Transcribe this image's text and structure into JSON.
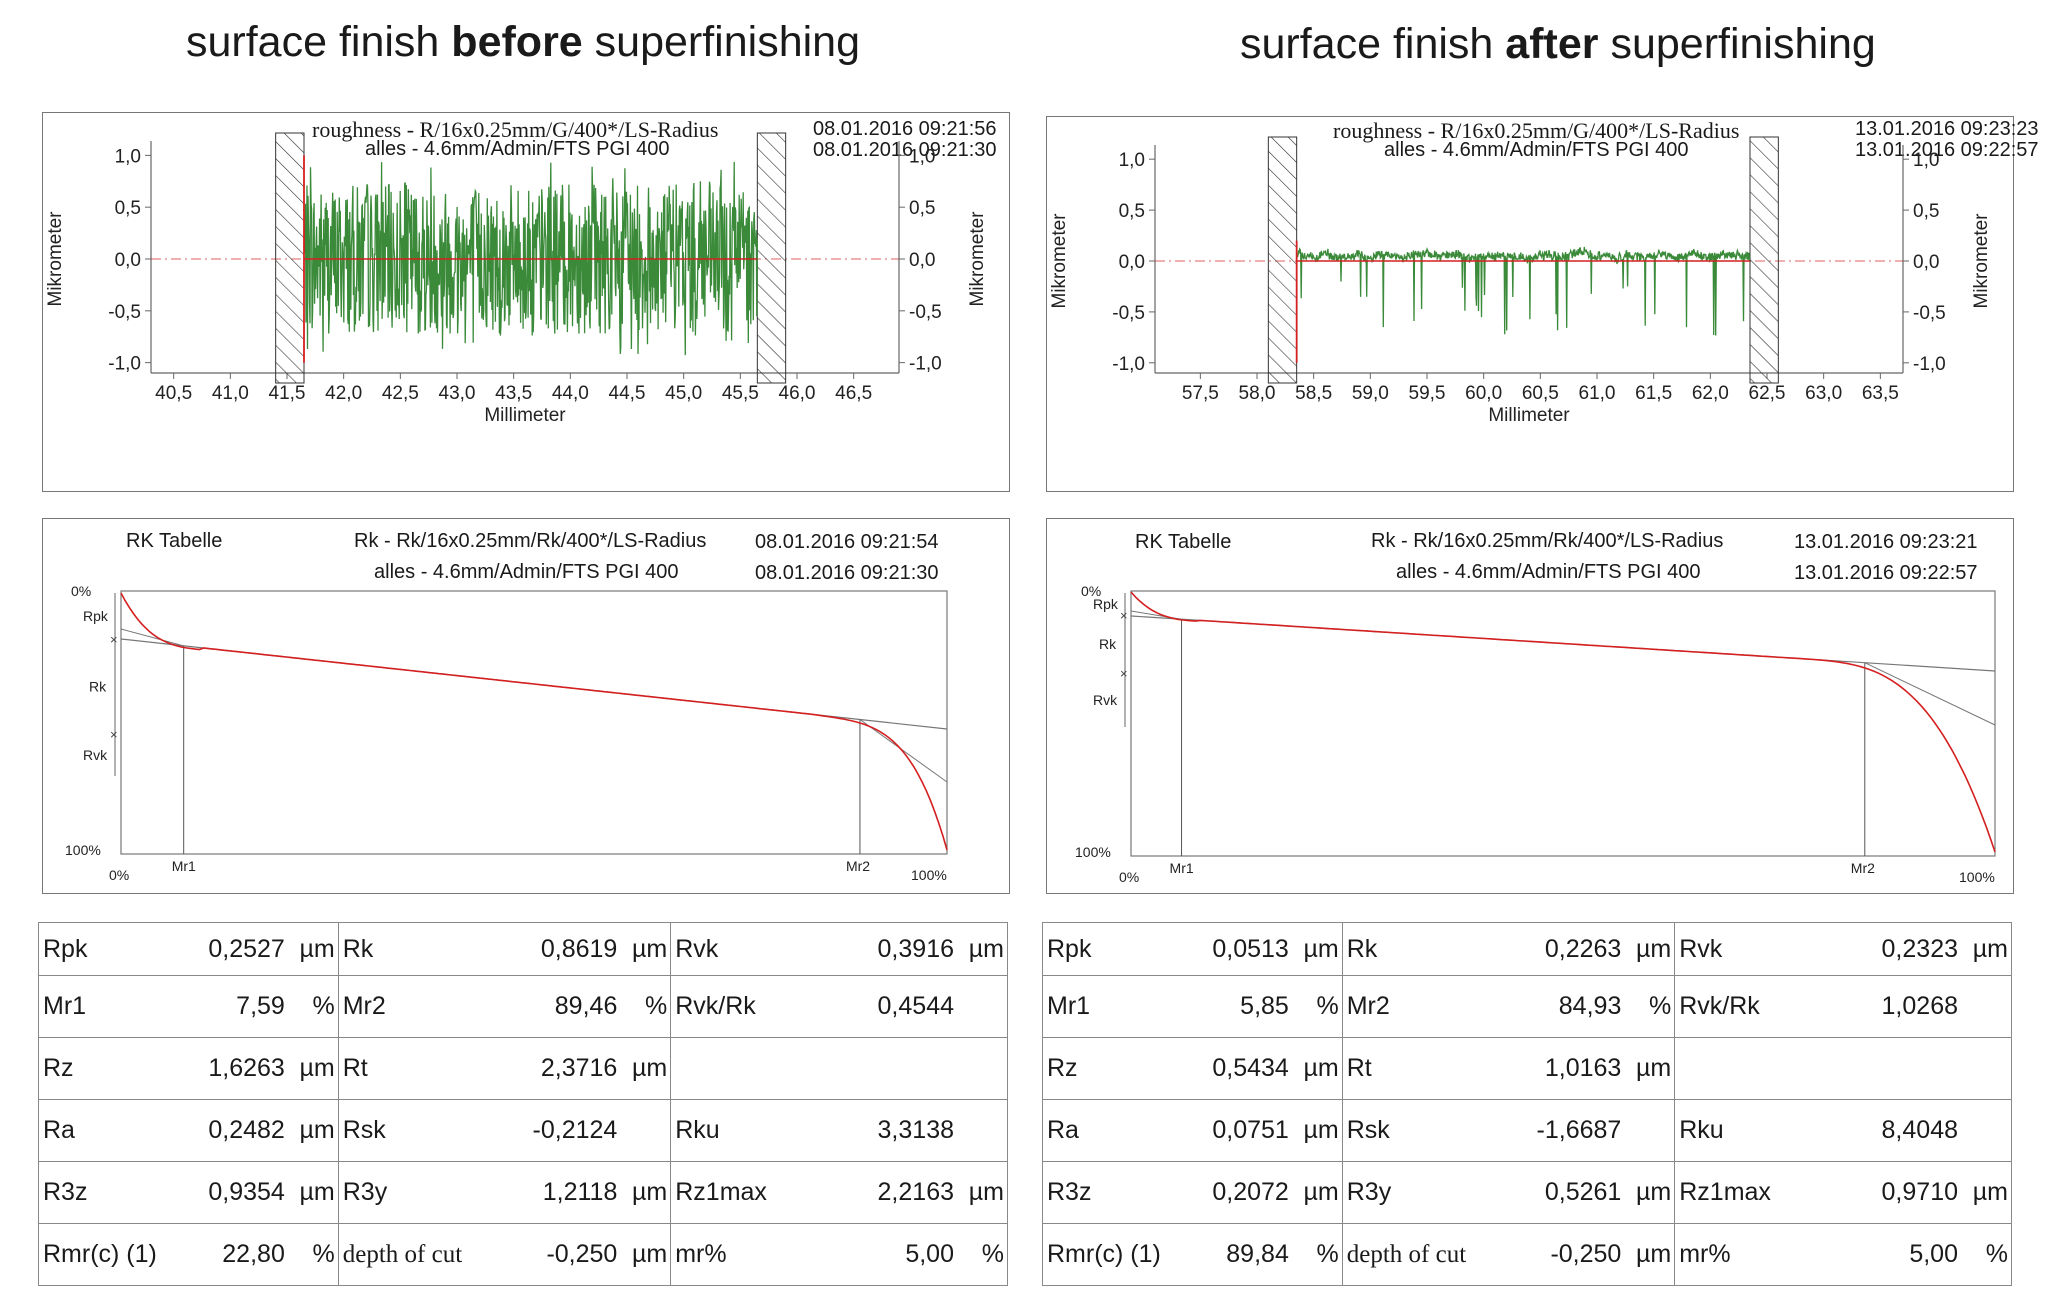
{
  "panels": [
    {
      "id": "before",
      "title_pre": "surface finish ",
      "title_bold": "before",
      "title_post": " superfinishing",
      "roughness": {
        "header_line1": "roughness - R/16x0.25mm/G/400*/LS-Radius",
        "header_line2": "alles - 4.6mm/Admin/FTS PGI 400",
        "date1": "08.01.2016 09:21:56",
        "date2": "08.01.2016 09:21:30"
      },
      "rk": {
        "title": "RK Tabelle",
        "header_line1": "Rk - Rk/16x0.25mm/Rk/400*/LS-Radius",
        "header_line2": "alles - 4.6mm/Admin/FTS PGI 400",
        "date1": "08.01.2016 09:21:54",
        "date2": "08.01.2016 09:21:30"
      },
      "params": [
        [
          [
            "Rpk",
            "0,2527",
            "µm"
          ],
          [
            "Rk",
            "0,8619",
            "µm"
          ],
          [
            "Rvk",
            "0,3916",
            "µm"
          ]
        ],
        [
          [
            "Mr1",
            "7,59",
            "%"
          ],
          [
            "Mr2",
            "89,46",
            "%"
          ],
          [
            "Rvk/Rk",
            "0,4544",
            ""
          ]
        ],
        [
          [
            "Rz",
            "1,6263",
            "µm"
          ],
          [
            "Rt",
            "2,3716",
            "µm"
          ],
          [
            "",
            "",
            ""
          ]
        ],
        [
          [
            "Ra",
            "0,2482",
            "µm"
          ],
          [
            "Rsk",
            "-0,2124",
            ""
          ],
          [
            "Rku",
            "3,3138",
            ""
          ]
        ],
        [
          [
            "R3z",
            "0,9354",
            "µm"
          ],
          [
            "R3y",
            "1,2118",
            "µm"
          ],
          [
            "Rz1max",
            "2,2163",
            "µm"
          ]
        ],
        [
          [
            "Rmr(c)  (1)",
            "22,80",
            "%"
          ],
          [
            "depth of cut",
            "-0,250",
            "µm"
          ],
          [
            "mr%",
            "5,00",
            "%"
          ]
        ]
      ]
    },
    {
      "id": "after",
      "title_pre": "surface finish ",
      "title_bold": "after",
      "title_post": " superfinishing",
      "roughness": {
        "header_line1": "roughness - R/16x0.25mm/G/400*/LS-Radius",
        "header_line2": "alles - 4.6mm/Admin/FTS PGI 400",
        "date1": "13.01.2016 09:23:23",
        "date2": "13.01.2016 09:22:57"
      },
      "rk": {
        "title": "RK Tabelle",
        "header_line1": "Rk - Rk/16x0.25mm/Rk/400*/LS-Radius",
        "header_line2": "alles - 4.6mm/Admin/FTS PGI 400",
        "date1": "13.01.2016 09:23:21",
        "date2": "13.01.2016 09:22:57"
      },
      "params": [
        [
          [
            "Rpk",
            "0,0513",
            "µm"
          ],
          [
            "Rk",
            "0,2263",
            "µm"
          ],
          [
            "Rvk",
            "0,2323",
            "µm"
          ]
        ],
        [
          [
            "Mr1",
            "5,85",
            "%"
          ],
          [
            "Mr2",
            "84,93",
            "%"
          ],
          [
            "Rvk/Rk",
            "1,0268",
            ""
          ]
        ],
        [
          [
            "Rz",
            "0,5434",
            "µm"
          ],
          [
            "Rt",
            "1,0163",
            "µm"
          ],
          [
            "",
            "",
            ""
          ]
        ],
        [
          [
            "Ra",
            "0,0751",
            "µm"
          ],
          [
            "Rsk",
            "-1,6687",
            ""
          ],
          [
            "Rku",
            "8,4048",
            ""
          ]
        ],
        [
          [
            "R3z",
            "0,2072",
            "µm"
          ],
          [
            "R3y",
            "0,5261",
            "µm"
          ],
          [
            "Rz1max",
            "0,9710",
            "µm"
          ]
        ],
        [
          [
            "Rmr(c)  (1)",
            "89,84",
            "%"
          ],
          [
            "depth of cut",
            "-0,250",
            "µm"
          ],
          [
            "mr%",
            "5,00",
            "%"
          ]
        ]
      ]
    }
  ],
  "chart_data": [
    {
      "type": "line",
      "panel": "before",
      "title": "roughness - R/16x0.25mm/G/400*/LS-Radius",
      "xlabel": "Millimeter",
      "ylabel": "Mikrometer",
      "xlim": [
        40.3,
        46.9
      ],
      "ylim": [
        -1.1,
        1.1
      ],
      "x_ticks": [
        "40,5",
        "41,0",
        "41,5",
        "42,0",
        "42,5",
        "43,0",
        "43,5",
        "44,0",
        "44,5",
        "45,0",
        "45,5",
        "46,0",
        "46,5"
      ],
      "y_ticks": [
        "1,0",
        "0,5",
        "0,0",
        "-0,5",
        "-1,0"
      ],
      "profile_range": [
        41.65,
        45.65
      ],
      "hatched_zones": [
        [
          41.4,
          41.65
        ],
        [
          45.65,
          45.9
        ]
      ],
      "profile_amplitude_um": 0.45,
      "colors": {
        "profile": "#3a8a3a",
        "reference": "#d42020"
      }
    },
    {
      "type": "line",
      "panel": "after",
      "title": "roughness - R/16x0.25mm/G/400*/LS-Radius",
      "xlabel": "Millimeter",
      "ylabel": "Mikrometer",
      "xlim": [
        57.1,
        63.7
      ],
      "ylim": [
        -1.1,
        1.1
      ],
      "x_ticks": [
        "57,5",
        "58,0",
        "58,5",
        "59,0",
        "59,5",
        "60,0",
        "60,5",
        "61,0",
        "61,5",
        "62,0",
        "62,5",
        "63,0",
        "63,5"
      ],
      "y_ticks": [
        "1,0",
        "0,5",
        "0,0",
        "-0,5",
        "-1,0"
      ],
      "profile_range": [
        58.35,
        62.35
      ],
      "hatched_zones": [
        [
          58.1,
          58.35
        ],
        [
          62.35,
          62.6
        ]
      ],
      "profile_amplitude_um": 0.1,
      "colors": {
        "profile": "#3a8a3a",
        "reference": "#d42020"
      }
    },
    {
      "type": "line",
      "panel": "before",
      "title": "RK Tabelle",
      "x_labels": [
        "0%",
        "Mr1",
        "Mr2",
        "100%"
      ],
      "y_labels": [
        "0%",
        "100%"
      ],
      "side_labels": [
        "Rpk",
        "Rk",
        "Rvk"
      ],
      "mr1_percent": 7.59,
      "mr2_percent": 89.46
    },
    {
      "type": "line",
      "panel": "after",
      "title": "RK Tabelle",
      "x_labels": [
        "0%",
        "Mr1",
        "Mr2",
        "100%"
      ],
      "y_labels": [
        "0%",
        "100%"
      ],
      "side_labels": [
        "Rpk",
        "Rk",
        "Rvk"
      ],
      "mr1_percent": 5.85,
      "mr2_percent": 84.93
    }
  ]
}
